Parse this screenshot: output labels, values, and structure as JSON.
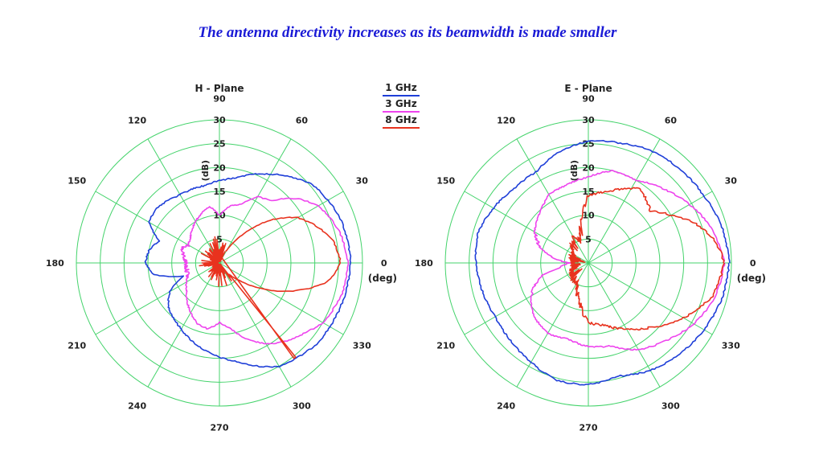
{
  "headline": "The antenna directivity increases as its beamwidth is made smaller",
  "colors": {
    "grid": "#44d36b",
    "1 GHz": "#1f3fd8",
    "3 GHz": "#ee44ee",
    "8 GHz": "#e8321e",
    "headline": "#1a1ad6"
  },
  "legend": {
    "items": [
      {
        "label": "1 GHz",
        "color": "#1f3fd8"
      },
      {
        "label": "3 GHz",
        "color": "#ee44ee"
      },
      {
        "label": "8 GHz",
        "color": "#e8321e"
      }
    ]
  },
  "chart_data": [
    {
      "type": "polar-line",
      "title": "H - Plane",
      "radial_unit": "(dB)",
      "angular_unit": "(deg)",
      "radial_range": [
        0,
        30
      ],
      "radial_ticks": [
        5,
        10,
        15,
        20,
        25,
        30
      ],
      "angular_ticks": [
        0,
        30,
        60,
        90,
        120,
        150,
        180,
        210,
        240,
        270,
        300,
        330
      ],
      "series": [
        {
          "name": "1 GHz",
          "r_by_angle": [
            [
              0,
              27.5
            ],
            [
              20,
              27
            ],
            [
              40,
              25.5
            ],
            [
              60,
              21.5
            ],
            [
              80,
              18
            ],
            [
              100,
              16.5
            ],
            [
              120,
              16.5
            ],
            [
              140,
              17.5
            ],
            [
              150,
              17
            ],
            [
              160,
              13.5
            ],
            [
              170,
              15
            ],
            [
              180,
              15.5
            ],
            [
              190,
              14
            ],
            [
              200,
              8
            ],
            [
              210,
              12
            ],
            [
              220,
              14
            ],
            [
              240,
              16
            ],
            [
              260,
              18.5
            ],
            [
              280,
              21
            ],
            [
              300,
              25
            ],
            [
              320,
              26.5
            ],
            [
              340,
              27
            ],
            [
              360,
              27.5
            ]
          ]
        },
        {
          "name": "3 GHz",
          "r_by_angle": [
            [
              0,
              27
            ],
            [
              15,
              26
            ],
            [
              30,
              24
            ],
            [
              40,
              21
            ],
            [
              50,
              17
            ],
            [
              60,
              16
            ],
            [
              70,
              13
            ],
            [
              80,
              12
            ],
            [
              90,
              10
            ],
            [
              100,
              12
            ],
            [
              110,
              11
            ],
            [
              120,
              10
            ],
            [
              130,
              9
            ],
            [
              140,
              8
            ],
            [
              150,
              7.5
            ],
            [
              160,
              8.5
            ],
            [
              170,
              7.5
            ],
            [
              180,
              7
            ],
            [
              190,
              7
            ],
            [
              200,
              7
            ],
            [
              210,
              8
            ],
            [
              220,
              9
            ],
            [
              230,
              10.5
            ],
            [
              240,
              12
            ],
            [
              250,
              13.5
            ],
            [
              260,
              14
            ],
            [
              270,
              12.5
            ],
            [
              280,
              14
            ],
            [
              290,
              17
            ],
            [
              300,
              19.5
            ],
            [
              310,
              21.5
            ],
            [
              320,
              23
            ],
            [
              330,
              25
            ],
            [
              345,
              26.5
            ],
            [
              360,
              27
            ]
          ]
        },
        {
          "name": "8 GHz",
          "r_by_angle": [
            [
              0,
              25.5
            ],
            [
              10,
              24.5
            ],
            [
              20,
              22
            ],
            [
              30,
              19
            ],
            [
              40,
              14
            ],
            [
              50,
              8
            ],
            [
              60,
              3
            ],
            [
              360,
              25.5
            ],
            [
              350,
              23
            ],
            [
              340,
              17
            ],
            [
              330,
              11
            ],
            [
              320,
              6
            ],
            [
              310,
              3
            ]
          ]
        }
      ]
    },
    {
      "type": "polar-line",
      "title": "E - Plane",
      "radial_unit": "(dB)",
      "angular_unit": "(deg)",
      "radial_range": [
        0,
        30
      ],
      "radial_ticks": [
        5,
        10,
        15,
        20,
        25,
        30
      ],
      "angular_ticks": [
        0,
        30,
        60,
        90,
        120,
        150,
        180,
        210,
        240,
        270,
        300,
        330
      ],
      "series": [
        {
          "name": "1 GHz",
          "r_by_angle": [
            [
              0,
              29.5
            ],
            [
              15,
              29
            ],
            [
              30,
              28
            ],
            [
              45,
              27.5
            ],
            [
              60,
              27
            ],
            [
              75,
              26
            ],
            [
              90,
              25.5
            ],
            [
              105,
              24
            ],
            [
              120,
              22
            ],
            [
              135,
              22
            ],
            [
              150,
              23
            ],
            [
              165,
              24
            ],
            [
              180,
              23.5
            ],
            [
              195,
              23
            ],
            [
              210,
              22.5
            ],
            [
              225,
              23
            ],
            [
              240,
              24
            ],
            [
              255,
              25.5
            ],
            [
              270,
              25.5
            ],
            [
              285,
              24.5
            ],
            [
              300,
              26
            ],
            [
              315,
              27
            ],
            [
              330,
              28
            ],
            [
              345,
              29
            ],
            [
              360,
              29.5
            ]
          ]
        },
        {
          "name": "3 GHz",
          "r_by_angle": [
            [
              0,
              28.5
            ],
            [
              15,
              27
            ],
            [
              30,
              24.5
            ],
            [
              45,
              22
            ],
            [
              60,
              20
            ],
            [
              75,
              20
            ],
            [
              90,
              18
            ],
            [
              105,
              17
            ],
            [
              120,
              16.5
            ],
            [
              135,
              14.5
            ],
            [
              150,
              13
            ],
            [
              165,
              10
            ],
            [
              170,
              8
            ],
            [
              180,
              4
            ],
            [
              190,
              6
            ],
            [
              195,
              10
            ],
            [
              210,
              14
            ],
            [
              225,
              16
            ],
            [
              240,
              17
            ],
            [
              255,
              16.5
            ],
            [
              270,
              17.5
            ],
            [
              285,
              18
            ],
            [
              300,
              21
            ],
            [
              315,
              23
            ],
            [
              330,
              25.5
            ],
            [
              345,
              27.5
            ],
            [
              360,
              28.5
            ]
          ]
        },
        {
          "name": "8 GHz",
          "r_by_angle": [
            [
              0,
              28.5
            ],
            [
              10,
              27
            ],
            [
              20,
              24
            ],
            [
              30,
              20
            ],
            [
              40,
              17
            ],
            [
              55,
              19
            ],
            [
              65,
              17
            ],
            [
              75,
              15.5
            ],
            [
              90,
              14
            ],
            [
              100,
              9
            ],
            [
              110,
              5
            ],
            [
              120,
              6
            ],
            [
              150,
              4
            ],
            [
              180,
              3
            ],
            [
              210,
              4
            ],
            [
              240,
              5
            ],
            [
              260,
              9
            ],
            [
              270,
              12.5
            ],
            [
              285,
              13.5
            ],
            [
              300,
              16
            ],
            [
              315,
              19
            ],
            [
              330,
              23
            ],
            [
              345,
              27
            ],
            [
              360,
              28.5
            ]
          ]
        }
      ]
    }
  ]
}
